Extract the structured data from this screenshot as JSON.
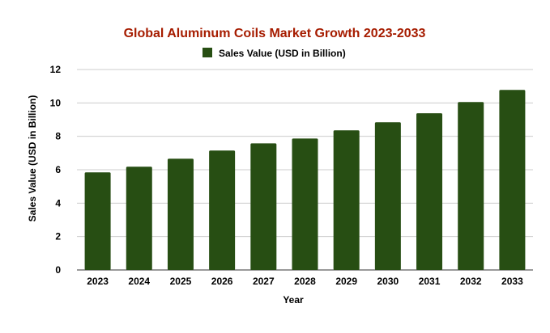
{
  "chart_data": {
    "type": "bar",
    "title": "Global Aluminum Coils Market Growth 2023-2033",
    "xlabel": "Year",
    "ylabel": "Sales Value (USD in Billion)",
    "categories": [
      "2023",
      "2024",
      "2025",
      "2026",
      "2027",
      "2028",
      "2029",
      "2030",
      "2031",
      "2032",
      "2033"
    ],
    "series": [
      {
        "name": "Sales Value (USD in Billion)",
        "values": [
          5.84,
          6.18,
          6.66,
          7.15,
          7.58,
          7.87,
          8.36,
          8.84,
          9.38,
          10.05,
          10.78
        ]
      }
    ],
    "ylim": [
      0,
      12
    ],
    "yticks": [
      0,
      2,
      4,
      6,
      8,
      10,
      12
    ],
    "grid": true,
    "legend": "top-center",
    "colors": {
      "bar": "#274e13",
      "title": "#a61c00",
      "grid": "#cccccc",
      "text": "#000000"
    }
  }
}
